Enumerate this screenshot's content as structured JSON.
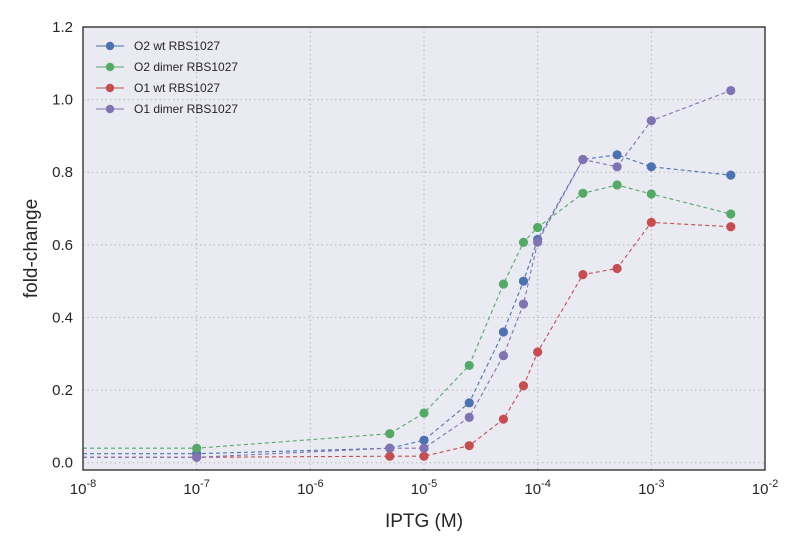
{
  "chart_data": {
    "type": "line",
    "xlabel": "IPTG (M)",
    "ylabel": "fold-change",
    "xscale": "log",
    "xlim": [
      1e-08,
      0.01
    ],
    "ylim": [
      -0.02,
      1.2
    ],
    "grid": true,
    "legend_position": "top-left",
    "x_ticks": [
      {
        "value": 1e-08,
        "base": "10",
        "exp": "-8"
      },
      {
        "value": 1e-07,
        "base": "10",
        "exp": "-7"
      },
      {
        "value": 1e-06,
        "base": "10",
        "exp": "-6"
      },
      {
        "value": 1e-05,
        "base": "10",
        "exp": "-5"
      },
      {
        "value": 0.0001,
        "base": "10",
        "exp": "-4"
      },
      {
        "value": 0.001,
        "base": "10",
        "exp": "-3"
      },
      {
        "value": 0.01,
        "base": "10",
        "exp": "-2"
      }
    ],
    "y_ticks": [
      {
        "value": 0.0,
        "label": "0.0"
      },
      {
        "value": 0.2,
        "label": "0.2"
      },
      {
        "value": 0.4,
        "label": "0.4"
      },
      {
        "value": 0.6,
        "label": "0.6"
      },
      {
        "value": 0.8,
        "label": "0.8"
      },
      {
        "value": 1.0,
        "label": "1.0"
      },
      {
        "value": 1.2,
        "label": "1.2"
      }
    ],
    "x": [
      0,
      1e-07,
      5e-06,
      1e-05,
      2.5e-05,
      5e-05,
      7.5e-05,
      0.0001,
      0.00025,
      0.0005,
      0.001,
      0.005
    ],
    "series": [
      {
        "name": "O2 wt RBS1027",
        "color": "#4c72b0",
        "values": [
          0.025,
          0.025,
          0.04,
          0.062,
          0.165,
          0.36,
          0.5,
          0.615,
          0.835,
          0.848,
          0.815,
          0.792
        ]
      },
      {
        "name": "O2 dimer RBS1027",
        "color": "#55a868",
        "values": [
          0.04,
          0.04,
          0.08,
          0.137,
          0.268,
          0.492,
          0.607,
          0.648,
          0.742,
          0.765,
          0.74,
          0.685
        ]
      },
      {
        "name": "O1 wt RBS1027",
        "color": "#c44e52",
        "values": [
          0.015,
          0.015,
          0.018,
          0.018,
          0.047,
          0.12,
          0.212,
          0.305,
          0.518,
          0.535,
          0.662,
          0.65
        ]
      },
      {
        "name": "O1 dimer RBS1027",
        "color": "#8172b2",
        "values": [
          0.015,
          0.015,
          0.04,
          0.04,
          0.125,
          0.295,
          0.437,
          0.608,
          0.835,
          0.815,
          0.942,
          1.025
        ]
      }
    ]
  }
}
